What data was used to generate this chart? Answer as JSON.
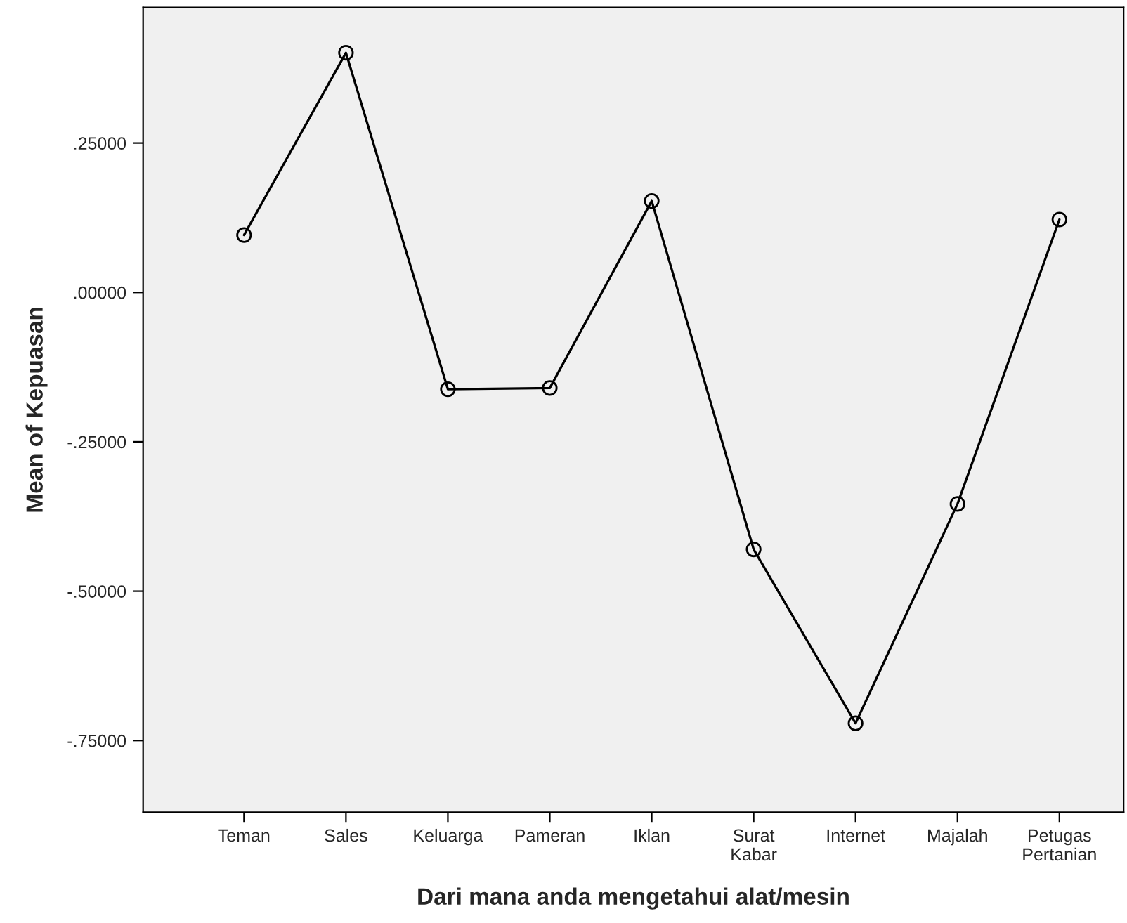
{
  "chart_data": {
    "type": "line",
    "xlabel": "Dari mana anda mengetahui alat/mesin",
    "ylabel": "Mean of Kepuasan",
    "categories": [
      "Teman",
      "Sales",
      "Keluarga",
      "Pameran",
      "Iklan",
      "Surat\nKabar",
      "Internet",
      "Majalah",
      "Petugas\nPertanian"
    ],
    "series": [
      {
        "color": "#000000",
        "values": [
          0.096,
          0.401,
          -0.162,
          -0.16,
          0.153,
          -0.43,
          -0.721,
          -0.354,
          0.122
        ]
      }
    ],
    "ylim": [
      -0.87,
      0.477
    ],
    "yticks": [
      {
        "value": -0.75,
        "label": "-.75000"
      },
      {
        "value": -0.5,
        "label": "-.50000"
      },
      {
        "value": -0.25,
        "label": "-.25000"
      },
      {
        "value": 0,
        "label": ".00000"
      },
      {
        "value": 0.25,
        "label": ".25000"
      }
    ],
    "marker": "circle",
    "line_style": "solid",
    "grid": false,
    "legend": false
  }
}
